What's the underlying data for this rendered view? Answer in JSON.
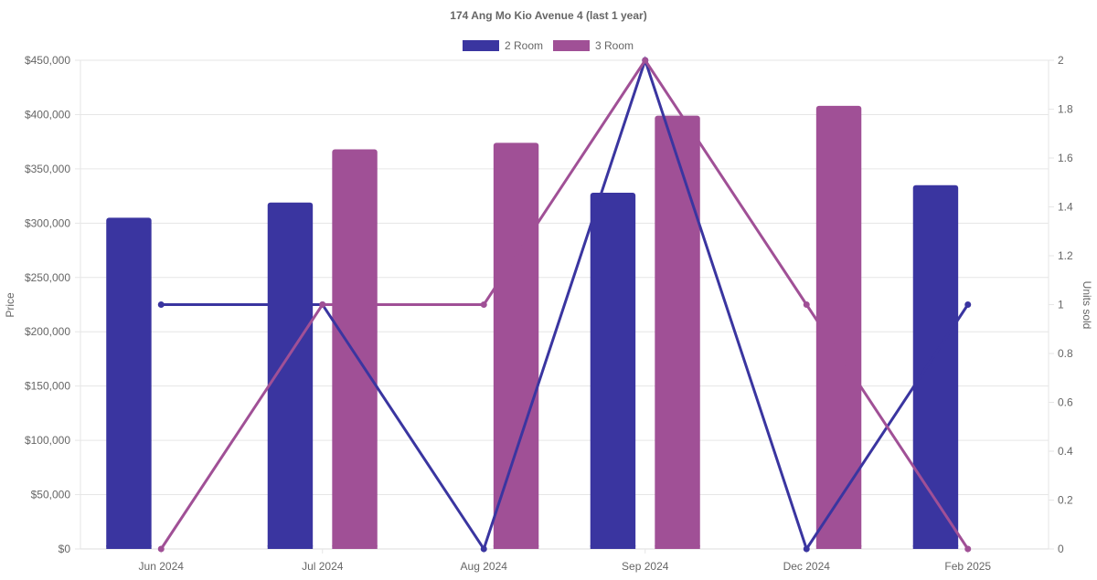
{
  "chart_data": {
    "type": "bar",
    "title": "174 Ang Mo Kio Avenue 4 (last 1 year)",
    "categories": [
      "Jun 2024",
      "Jul 2024",
      "Aug 2024",
      "Sep 2024",
      "Dec 2024",
      "Feb 2025"
    ],
    "ylabel": "Price",
    "y2label": "Units sold",
    "ylim": [
      0,
      450000
    ],
    "y2lim": [
      0,
      2
    ],
    "yticks": [
      "$0",
      "$50,000",
      "$100,000",
      "$150,000",
      "$200,000",
      "$250,000",
      "$300,000",
      "$350,000",
      "$400,000",
      "$450,000"
    ],
    "y2ticks": [
      "0",
      "0.2",
      "0.4",
      "0.6",
      "0.8",
      "1",
      "1.2",
      "1.4",
      "1.6",
      "1.8",
      "2"
    ],
    "grid": true,
    "legend_position": "top",
    "series": [
      {
        "name": "2 Room",
        "color": "#3a35a0",
        "price": [
          305000,
          319000,
          null,
          328000,
          null,
          335000
        ],
        "units": [
          1,
          1,
          0,
          2,
          0,
          1
        ]
      },
      {
        "name": "3 Room",
        "color": "#a05096",
        "price": [
          null,
          368000,
          374000,
          399000,
          408000,
          null
        ],
        "units": [
          0,
          1,
          1,
          2,
          1,
          0
        ]
      }
    ]
  }
}
